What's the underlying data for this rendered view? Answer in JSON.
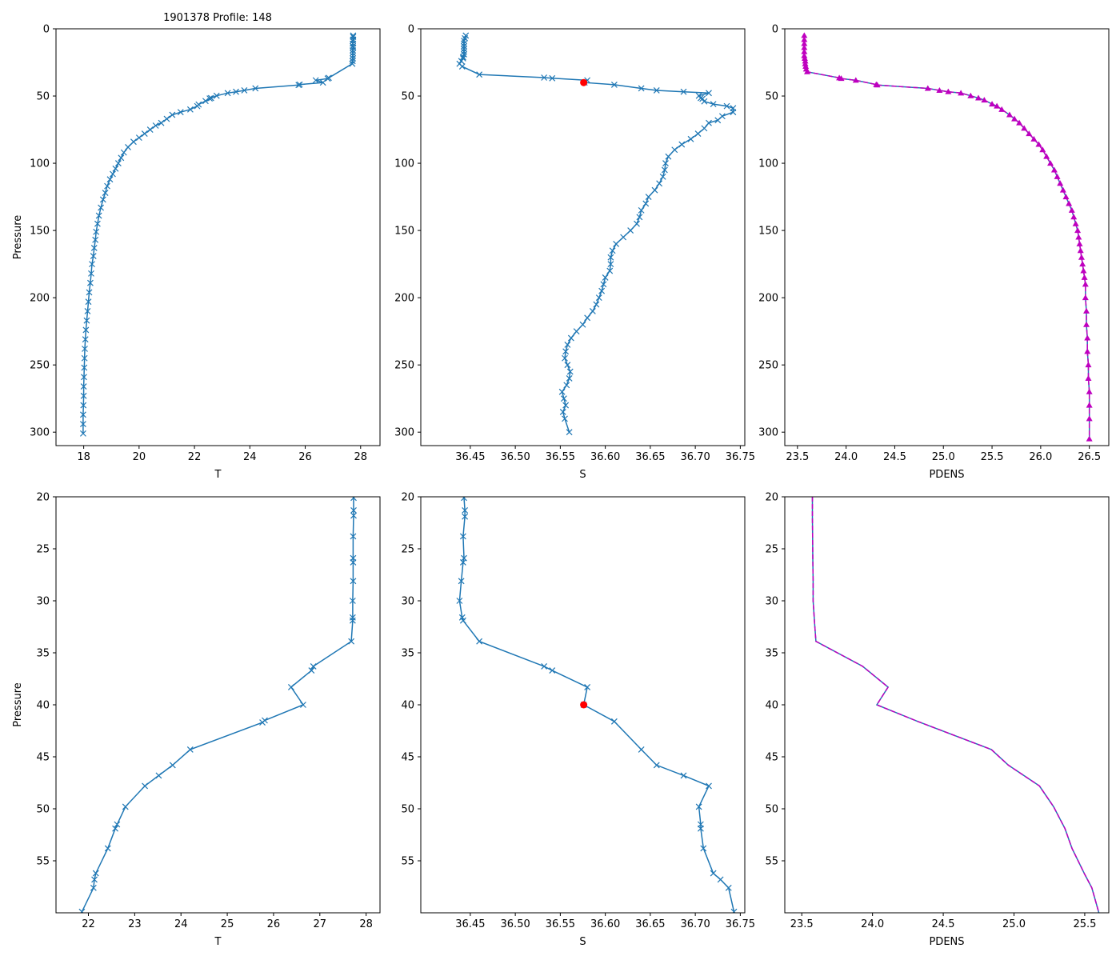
{
  "title": "1901378 Profile: 148",
  "colors": {
    "line": "#1f77b4",
    "pdens": "#bf00bf",
    "marker": "#ff0000",
    "axis": "#000000"
  },
  "chart_data": [
    {
      "type": "line",
      "position": "top-left",
      "xlabel": "T",
      "ylabel": "Pressure",
      "xlim": [
        17.0,
        28.7
      ],
      "ylim": [
        310,
        0
      ],
      "xticks": [
        {
          "v": 18,
          "label": "18"
        },
        {
          "v": 20,
          "label": "20"
        },
        {
          "v": 22,
          "label": "22"
        },
        {
          "v": 24,
          "label": "24"
        },
        {
          "v": 26,
          "label": "26"
        },
        {
          "v": 28,
          "label": "28"
        }
      ],
      "yticks": [
        {
          "v": 0,
          "label": "0"
        },
        {
          "v": 50,
          "label": "50"
        },
        {
          "v": 100,
          "label": "100"
        },
        {
          "v": 150,
          "label": "150"
        },
        {
          "v": 200,
          "label": "200"
        },
        {
          "v": 250,
          "label": "250"
        },
        {
          "v": 300,
          "label": "300"
        }
      ],
      "series": [
        {
          "name": "T",
          "style": "line-x",
          "x": [
            27.73,
            27.73,
            27.73,
            27.72,
            27.72,
            27.72,
            27.73,
            27.72,
            27.72,
            27.72,
            27.72,
            27.71,
            27.7,
            26.85,
            26.81,
            26.38,
            26.64,
            25.8,
            25.76,
            24.2,
            23.8,
            23.5,
            23.2,
            22.8,
            22.6,
            22.55,
            22.4,
            22.15,
            22.1,
            21.85,
            21.5,
            21.2,
            21.0,
            20.8,
            20.6,
            20.4,
            20.2,
            20.0,
            19.8,
            19.6,
            19.45,
            19.35,
            19.25,
            19.15,
            19.05,
            18.95,
            18.85,
            18.78,
            18.7,
            18.62,
            18.55,
            18.5,
            18.45,
            18.42,
            18.38,
            18.35,
            18.3,
            18.27,
            18.24,
            18.2,
            18.17,
            18.14,
            18.11,
            18.08,
            18.06,
            18.04,
            18.03,
            18.02,
            18.01,
            18.0,
            18.0,
            17.99,
            17.98,
            17.98,
            17.98
          ],
          "y": [
            5,
            6,
            8,
            9,
            11,
            13,
            14,
            16,
            18,
            20,
            22,
            24,
            26,
            36.5,
            37,
            38.3,
            40,
            41.5,
            41.8,
            44.3,
            45.8,
            46.8,
            47.8,
            49.8,
            51.5,
            51.8,
            53.7,
            56.3,
            57.5,
            60,
            62,
            64,
            67,
            70,
            72,
            75,
            78,
            81,
            84,
            88,
            92,
            96,
            100,
            104,
            108,
            112,
            117,
            122,
            127,
            133,
            139,
            145,
            151,
            157,
            163,
            169,
            175,
            182,
            189,
            196,
            203,
            210,
            217,
            224,
            231,
            238,
            245,
            252,
            259,
            266,
            273,
            280,
            287,
            294,
            301
          ]
        }
      ]
    },
    {
      "type": "line",
      "position": "top-middle",
      "xlabel": "S",
      "ylabel": "",
      "xlim": [
        36.395,
        36.755
      ],
      "ylim": [
        310,
        0
      ],
      "xticks": [
        {
          "v": 36.45,
          "label": "36.45"
        },
        {
          "v": 36.5,
          "label": "36.50"
        },
        {
          "v": 36.55,
          "label": "36.55"
        },
        {
          "v": 36.6,
          "label": "36.60"
        },
        {
          "v": 36.65,
          "label": "36.65"
        },
        {
          "v": 36.7,
          "label": "36.70"
        },
        {
          "v": 36.75,
          "label": "36.75"
        }
      ],
      "yticks": [
        {
          "v": 0,
          "label": "0"
        },
        {
          "v": 50,
          "label": "50"
        },
        {
          "v": 100,
          "label": "100"
        },
        {
          "v": 150,
          "label": "150"
        },
        {
          "v": 200,
          "label": "200"
        },
        {
          "v": 250,
          "label": "250"
        },
        {
          "v": 300,
          "label": "300"
        }
      ],
      "series": [
        {
          "name": "S",
          "style": "line-x",
          "x": [
            36.445,
            36.444,
            36.443,
            36.443,
            36.443,
            36.443,
            36.443,
            36.443,
            36.442,
            36.442,
            36.44,
            36.438,
            36.441,
            36.46,
            36.532,
            36.541,
            36.58,
            36.577,
            36.61,
            36.64,
            36.657,
            36.687,
            36.715,
            36.704,
            36.706,
            36.708,
            36.71,
            36.72,
            36.735,
            36.742,
            36.742,
            36.73,
            36.725,
            36.715,
            36.71,
            36.703,
            36.695,
            36.685,
            36.677,
            36.67,
            36.667,
            36.666,
            36.664,
            36.66,
            36.655,
            36.648,
            36.645,
            36.64,
            36.638,
            36.635,
            36.628,
            36.62,
            36.612,
            36.608,
            36.606,
            36.606,
            36.605,
            36.6,
            36.598,
            36.596,
            36.593,
            36.59,
            36.586,
            36.58,
            36.575,
            36.568,
            36.562,
            36.558,
            36.556,
            36.555,
            36.558,
            36.561,
            36.56,
            36.557,
            36.552,
            36.554,
            36.556,
            36.553,
            36.555,
            36.56
          ],
          "y": [
            5,
            7,
            9,
            11,
            13,
            15,
            17,
            19,
            21,
            22,
            24,
            26,
            28,
            34,
            36.3,
            36.8,
            38.3,
            40,
            41.6,
            44.3,
            45.8,
            46.8,
            47.8,
            49.8,
            51.5,
            52,
            54,
            56,
            57.5,
            59,
            62,
            65,
            68,
            70,
            74,
            78,
            82,
            86,
            90,
            95,
            100,
            105,
            110,
            115,
            120,
            125,
            130,
            135,
            140,
            145,
            150,
            155,
            160,
            165,
            170,
            175,
            180,
            185,
            190,
            195,
            200,
            205,
            210,
            215,
            220,
            225,
            230,
            235,
            240,
            245,
            250,
            255,
            260,
            265,
            270,
            275,
            280,
            285,
            290,
            300
          ]
        },
        {
          "name": "selected",
          "style": "dot",
          "x": [
            36.576
          ],
          "y": [
            40
          ]
        }
      ]
    },
    {
      "type": "line",
      "position": "top-right",
      "xlabel": "PDENS",
      "ylabel": "",
      "xlim": [
        23.37,
        26.7
      ],
      "ylim": [
        310,
        0
      ],
      "xticks": [
        {
          "v": 23.5,
          "label": "23.5"
        },
        {
          "v": 24.0,
          "label": "24.0"
        },
        {
          "v": 24.5,
          "label": "24.5"
        },
        {
          "v": 25.0,
          "label": "25.0"
        },
        {
          "v": 25.5,
          "label": "25.5"
        },
        {
          "v": 26.0,
          "label": "26.0"
        },
        {
          "v": 26.5,
          "label": "26.5"
        }
      ],
      "yticks": [
        {
          "v": 0,
          "label": "0"
        },
        {
          "v": 50,
          "label": "50"
        },
        {
          "v": 100,
          "label": "100"
        },
        {
          "v": 150,
          "label": "150"
        },
        {
          "v": 200,
          "label": "200"
        },
        {
          "v": 250,
          "label": "250"
        },
        {
          "v": 300,
          "label": "300"
        }
      ],
      "series": [
        {
          "name": "PDENS",
          "style": "dash-tri",
          "x": [
            23.57,
            23.57,
            23.57,
            23.57,
            23.57,
            23.57,
            23.575,
            23.58,
            23.58,
            23.585,
            23.59,
            23.6,
            23.93,
            23.95,
            24.1,
            24.31,
            24.32,
            24.84,
            24.96,
            25.05,
            25.18,
            25.28,
            25.36,
            25.42,
            25.5,
            25.55,
            25.6,
            25.68,
            25.73,
            25.78,
            25.83,
            25.88,
            25.93,
            25.98,
            26.02,
            26.06,
            26.1,
            26.14,
            26.17,
            26.2,
            26.23,
            26.26,
            26.29,
            26.32,
            26.34,
            26.36,
            26.38,
            26.39,
            26.4,
            26.41,
            26.42,
            26.43,
            26.44,
            26.45,
            26.46,
            26.46,
            26.47,
            26.47,
            26.48,
            26.48,
            26.49,
            26.49,
            26.5,
            26.5,
            26.5,
            26.5
          ],
          "y": [
            5,
            8,
            11,
            14,
            17,
            20,
            22,
            24,
            26,
            28,
            30,
            32,
            36.5,
            37,
            38.3,
            41.5,
            41.8,
            44.3,
            45.8,
            46.8,
            47.8,
            49.8,
            51.5,
            53,
            56,
            57.5,
            60,
            64,
            67,
            70,
            74,
            78,
            82,
            86,
            90,
            95,
            100,
            105,
            110,
            115,
            120,
            125,
            130,
            135,
            140,
            145,
            150,
            155,
            160,
            165,
            170,
            175,
            180,
            185,
            190,
            200,
            210,
            220,
            230,
            240,
            250,
            260,
            270,
            280,
            290,
            305
          ]
        }
      ]
    },
    {
      "type": "line",
      "position": "bottom-left",
      "xlabel": "T",
      "ylabel": "Pressure",
      "xlim": [
        21.3,
        28.3
      ],
      "ylim": [
        60,
        20
      ],
      "xticks": [
        {
          "v": 22,
          "label": "22"
        },
        {
          "v": 23,
          "label": "23"
        },
        {
          "v": 24,
          "label": "24"
        },
        {
          "v": 25,
          "label": "25"
        },
        {
          "v": 26,
          "label": "26"
        },
        {
          "v": 27,
          "label": "27"
        },
        {
          "v": 28,
          "label": "28"
        }
      ],
      "yticks": [
        {
          "v": 20,
          "label": "20"
        },
        {
          "v": 25,
          "label": "25"
        },
        {
          "v": 30,
          "label": "30"
        },
        {
          "v": 35,
          "label": "35"
        },
        {
          "v": 40,
          "label": "40"
        },
        {
          "v": 45,
          "label": "45"
        },
        {
          "v": 50,
          "label": "50"
        },
        {
          "v": 55,
          "label": "55"
        }
      ],
      "series": [
        {
          "name": "T",
          "style": "line-x",
          "x": [
            27.73,
            27.73,
            27.73,
            27.72,
            27.72,
            27.72,
            27.72,
            27.71,
            27.71,
            27.71,
            27.68,
            26.86,
            26.82,
            26.38,
            26.64,
            25.81,
            25.76,
            24.2,
            23.82,
            23.52,
            23.22,
            22.8,
            22.62,
            22.58,
            22.42,
            22.16,
            22.13,
            22.11,
            21.86
          ],
          "y": [
            20.1,
            21.3,
            21.8,
            23.8,
            25.9,
            26.3,
            28.1,
            30,
            31.6,
            31.9,
            33.9,
            36.3,
            36.7,
            38.3,
            40,
            41.5,
            41.7,
            44.3,
            45.8,
            46.8,
            47.8,
            49.8,
            51.5,
            51.9,
            53.8,
            56.2,
            56.8,
            57.6,
            59.9
          ]
        }
      ]
    },
    {
      "type": "line",
      "position": "bottom-middle",
      "xlabel": "S",
      "ylabel": "",
      "xlim": [
        36.395,
        36.755
      ],
      "ylim": [
        60,
        20
      ],
      "xticks": [
        {
          "v": 36.45,
          "label": "36.45"
        },
        {
          "v": 36.5,
          "label": "36.50"
        },
        {
          "v": 36.55,
          "label": "36.55"
        },
        {
          "v": 36.6,
          "label": "36.60"
        },
        {
          "v": 36.65,
          "label": "36.65"
        },
        {
          "v": 36.7,
          "label": "36.70"
        },
        {
          "v": 36.75,
          "label": "36.75"
        }
      ],
      "yticks": [
        {
          "v": 20,
          "label": "20"
        },
        {
          "v": 25,
          "label": "25"
        },
        {
          "v": 30,
          "label": "30"
        },
        {
          "v": 35,
          "label": "35"
        },
        {
          "v": 40,
          "label": "40"
        },
        {
          "v": 45,
          "label": "45"
        },
        {
          "v": 50,
          "label": "50"
        },
        {
          "v": 55,
          "label": "55"
        }
      ],
      "series": [
        {
          "name": "S",
          "style": "line-x",
          "x": [
            36.443,
            36.444,
            36.444,
            36.442,
            36.443,
            36.442,
            36.44,
            36.438,
            36.441,
            36.442,
            36.46,
            36.532,
            36.541,
            36.58,
            36.576,
            36.61,
            36.64,
            36.657,
            36.687,
            36.715,
            36.704,
            36.706,
            36.706,
            36.709,
            36.72,
            36.728,
            36.737,
            36.743
          ],
          "y": [
            20.1,
            21.3,
            21.9,
            23.8,
            25.9,
            26.3,
            28.1,
            30,
            31.6,
            31.9,
            33.9,
            36.3,
            36.7,
            38.3,
            40,
            41.6,
            44.3,
            45.8,
            46.8,
            47.8,
            49.8,
            51.5,
            51.9,
            53.8,
            56.2,
            56.8,
            57.6,
            59.9
          ]
        },
        {
          "name": "selected",
          "style": "dot",
          "x": [
            36.576
          ],
          "y": [
            40
          ]
        }
      ]
    },
    {
      "type": "line",
      "position": "bottom-right",
      "xlabel": "PDENS",
      "ylabel": "",
      "xlim": [
        23.38,
        25.67
      ],
      "ylim": [
        60,
        20
      ],
      "xticks": [
        {
          "v": 23.5,
          "label": "23.5"
        },
        {
          "v": 24.0,
          "label": "24.0"
        },
        {
          "v": 24.5,
          "label": "24.5"
        },
        {
          "v": 25.0,
          "label": "25.0"
        },
        {
          "v": 25.5,
          "label": "25.5"
        }
      ],
      "yticks": [
        {
          "v": 20,
          "label": "20"
        },
        {
          "v": 25,
          "label": "25"
        },
        {
          "v": 30,
          "label": "30"
        },
        {
          "v": 35,
          "label": "35"
        },
        {
          "v": 40,
          "label": "40"
        },
        {
          "v": 45,
          "label": "45"
        },
        {
          "v": 50,
          "label": "50"
        },
        {
          "v": 55,
          "label": "55"
        }
      ],
      "series": [
        {
          "name": "PDENS",
          "style": "dash-line",
          "x": [
            23.575,
            23.575,
            23.577,
            23.578,
            23.58,
            23.58,
            23.59,
            23.6,
            23.93,
            24.11,
            24.03,
            24.32,
            24.84,
            24.96,
            25.18,
            25.28,
            25.36,
            25.41,
            25.5,
            25.55,
            25.6
          ],
          "y": [
            20,
            22,
            24,
            26,
            28,
            30,
            32,
            33.9,
            36.3,
            38.3,
            40,
            41.6,
            44.3,
            45.8,
            47.8,
            49.8,
            51.9,
            53.8,
            56.3,
            57.6,
            60
          ]
        }
      ]
    }
  ]
}
